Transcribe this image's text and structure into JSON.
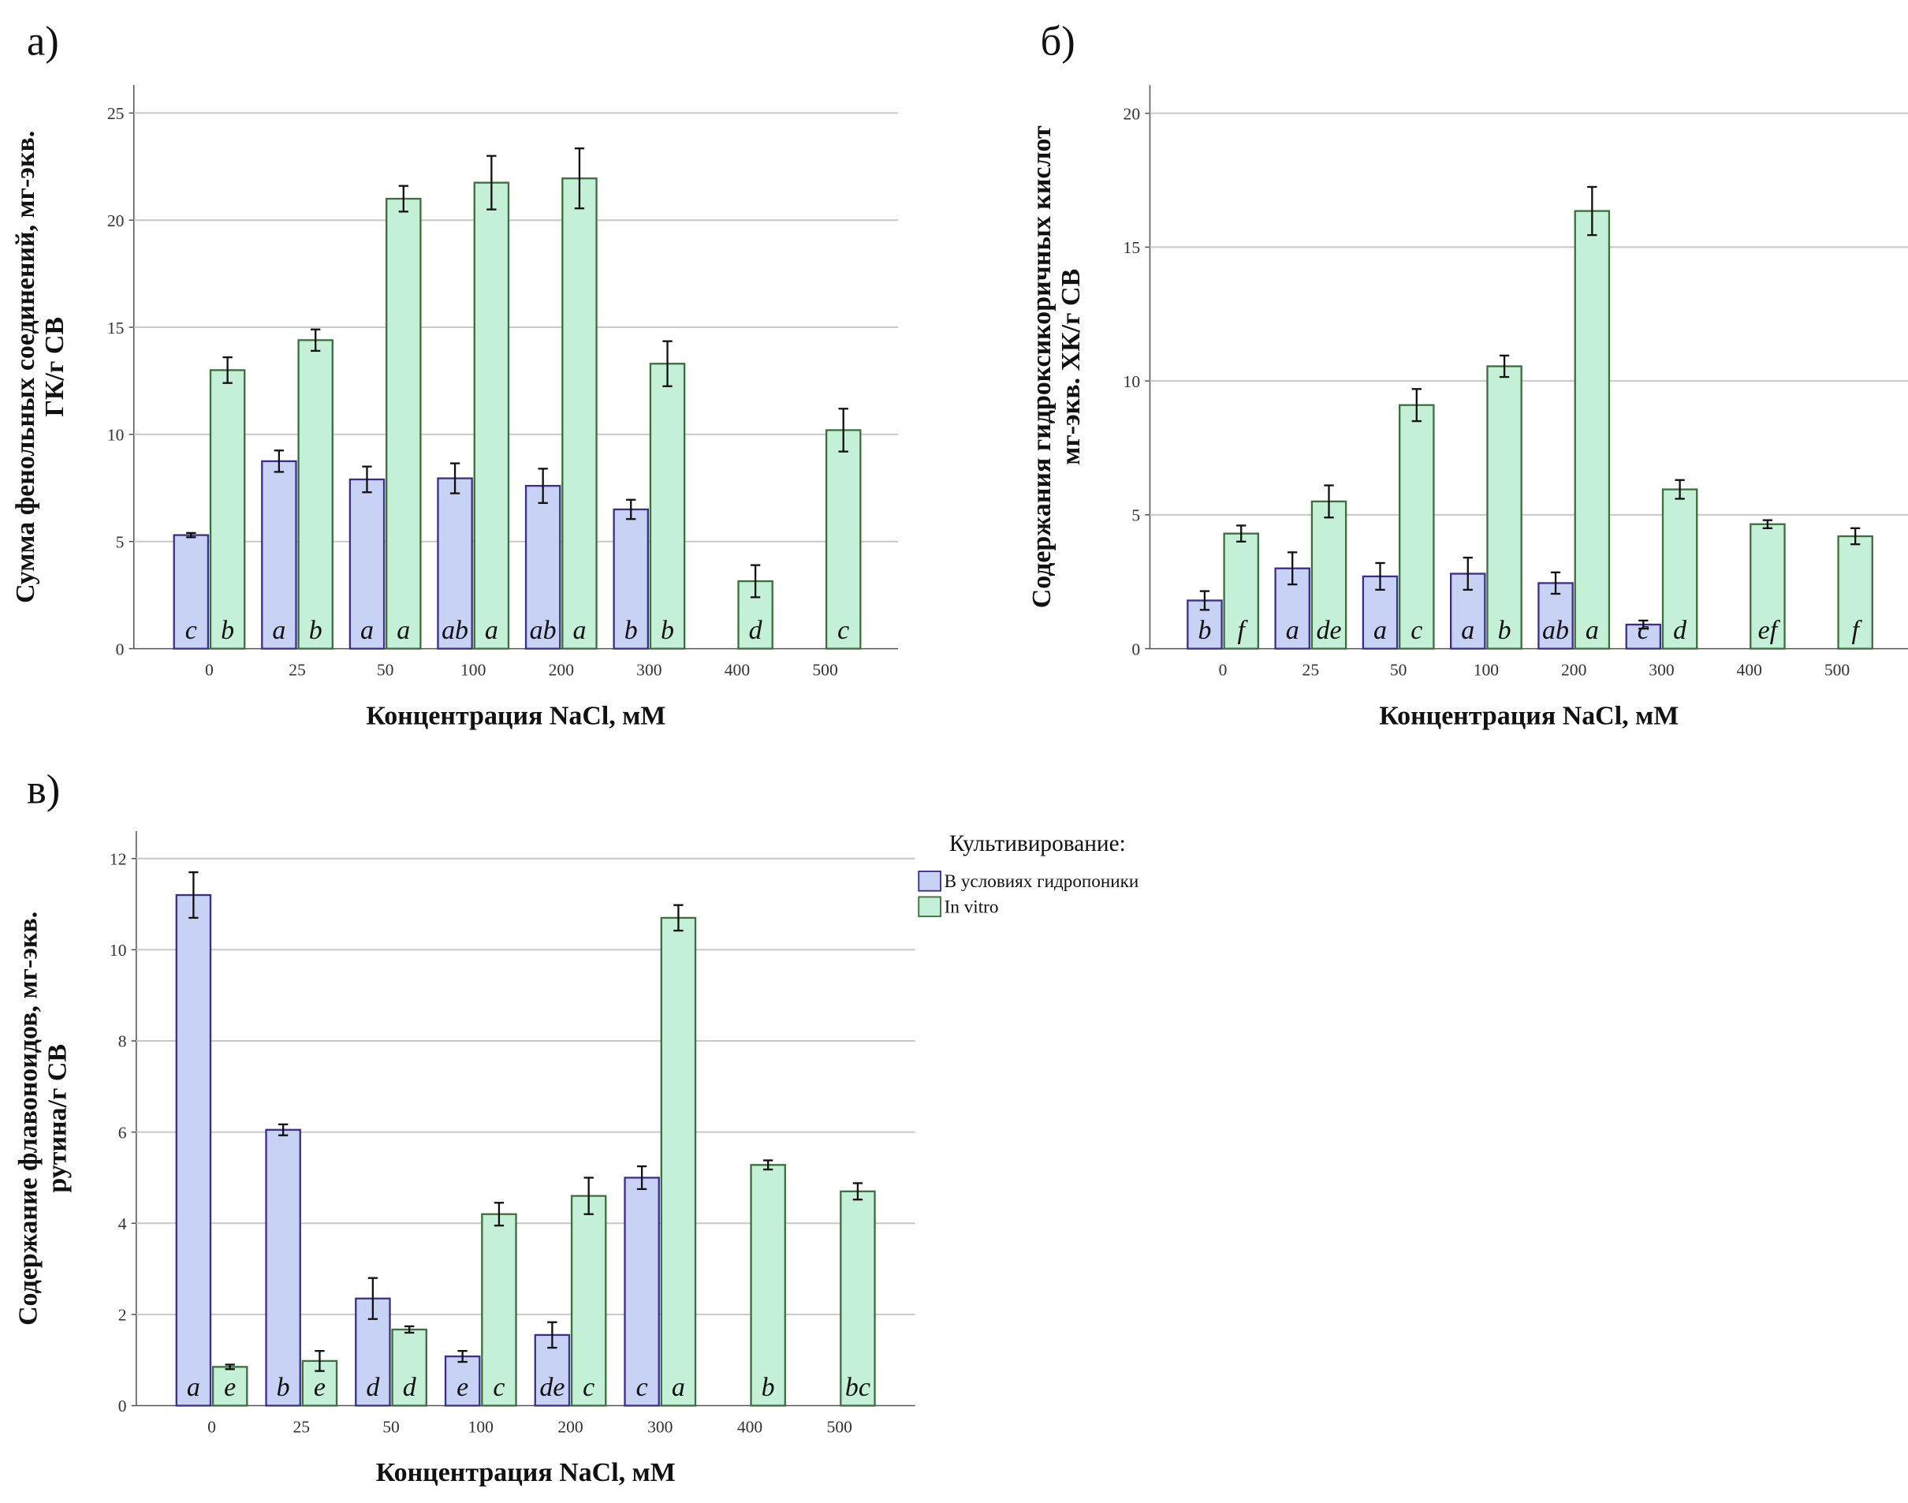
{
  "chart_data": [
    {
      "type": "bar",
      "panel": "а)",
      "ylabel": [
        "Сумма фенольных соединений, мг-экв.",
        "ГК/г СВ"
      ],
      "xlabel": "Концентрация NaCl, мМ",
      "categories": [
        "0",
        "25",
        "50",
        "100",
        "200",
        "300",
        "400",
        "500"
      ],
      "series": [
        {
          "name": "В условиях гидропоники",
          "color": "#c8d2f5",
          "values": [
            5.3,
            8.75,
            7.9,
            7.95,
            7.6,
            6.5,
            null,
            null
          ],
          "errors": [
            0.1,
            0.5,
            0.6,
            0.7,
            0.8,
            0.45,
            null,
            null
          ],
          "letters": [
            "c",
            "a",
            "a",
            "ab",
            "ab",
            "b",
            null,
            null
          ]
        },
        {
          "name": "In vitro",
          "color": "#c5f0d8",
          "values": [
            13.0,
            14.4,
            21.0,
            21.75,
            21.95,
            13.3,
            3.15,
            10.2
          ],
          "errors": [
            0.6,
            0.5,
            0.6,
            1.25,
            1.4,
            1.05,
            0.75,
            1.0
          ],
          "letters": [
            "b",
            "b",
            "a",
            "a",
            "a",
            "b",
            "d",
            "c"
          ]
        }
      ],
      "ylim": [
        0,
        26.3
      ],
      "yticks": [
        0,
        5,
        10,
        15,
        20,
        25
      ],
      "grid": true
    },
    {
      "type": "bar",
      "panel": "б)",
      "ylabel": [
        "Содержания гидроксикоричных кислот",
        "мг-экв. ХК/г СВ"
      ],
      "xlabel": "Концентрация NaCl, мМ",
      "categories": [
        "0",
        "25",
        "50",
        "100",
        "200",
        "300",
        "400",
        "500"
      ],
      "series": [
        {
          "name": "В условиях гидропоники",
          "color": "#c8d2f5",
          "values": [
            1.8,
            3.0,
            2.7,
            2.8,
            2.45,
            0.9,
            null,
            null
          ],
          "errors": [
            0.35,
            0.6,
            0.5,
            0.6,
            0.4,
            0.15,
            null,
            null
          ],
          "letters": [
            "b",
            "a",
            "a",
            "a",
            "ab",
            "c",
            null,
            null
          ]
        },
        {
          "name": "In vitro",
          "color": "#c5f0d8",
          "values": [
            4.3,
            5.5,
            9.1,
            10.55,
            16.35,
            5.95,
            4.65,
            4.2
          ],
          "errors": [
            0.3,
            0.6,
            0.6,
            0.4,
            0.9,
            0.35,
            0.15,
            0.3
          ],
          "letters": [
            "f",
            "de",
            "c",
            "b",
            "a",
            "d",
            "ef",
            "f"
          ]
        }
      ],
      "ylim": [
        0,
        21.05
      ],
      "yticks": [
        0,
        5,
        10,
        15,
        20
      ],
      "grid": true
    },
    {
      "type": "bar",
      "panel": "в)",
      "ylabel": [
        "Содержание флавоноидов, мг-экв.",
        "рутина/г СВ"
      ],
      "xlabel": "Концентрация NaCl, мМ",
      "legend_title": "Культивирование:",
      "categories": [
        "0",
        "25",
        "50",
        "100",
        "200",
        "300",
        "400",
        "500"
      ],
      "series": [
        {
          "name": "В условиях гидропоники",
          "color": "#c8d2f5",
          "values": [
            11.2,
            6.05,
            2.35,
            1.08,
            1.55,
            5.0,
            null,
            null
          ],
          "errors": [
            0.5,
            0.12,
            0.45,
            0.12,
            0.28,
            0.25,
            null,
            null
          ],
          "letters": [
            "a",
            "b",
            "d",
            "e",
            "de",
            "c",
            null,
            null
          ]
        },
        {
          "name": "In vitro",
          "color": "#c5f0d8",
          "values": [
            0.85,
            0.98,
            1.67,
            4.2,
            4.6,
            10.7,
            5.28,
            4.7
          ],
          "errors": [
            0.05,
            0.22,
            0.07,
            0.25,
            0.4,
            0.28,
            0.1,
            0.18
          ],
          "letters": [
            "e",
            "e",
            "d",
            "c",
            "c",
            "a",
            "b",
            "bc"
          ]
        }
      ],
      "ylim": [
        0,
        12.6
      ],
      "yticks": [
        0,
        2,
        4,
        6,
        8,
        10,
        12
      ],
      "grid": true
    }
  ]
}
